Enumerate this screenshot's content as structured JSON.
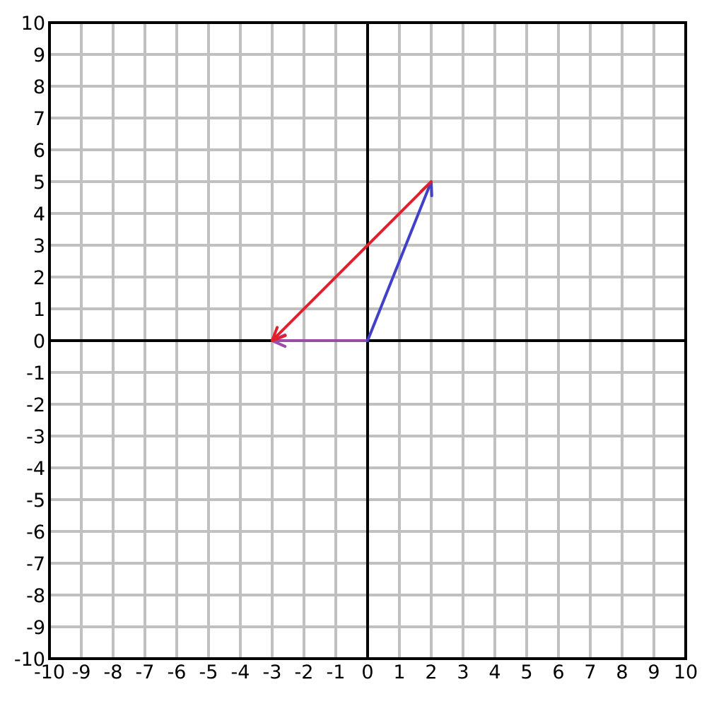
{
  "chart_data": {
    "type": "vector-plot",
    "title": "",
    "xlabel": "",
    "ylabel": "",
    "xlim": [
      -10,
      10
    ],
    "ylim": [
      -10,
      10
    ],
    "grid": true,
    "grid_step": 1,
    "x_ticks": [
      "-10",
      "-9",
      "-8",
      "-7",
      "-6",
      "-5",
      "-4",
      "-3",
      "-2",
      "-1",
      "0",
      "1",
      "2",
      "3",
      "4",
      "5",
      "6",
      "7",
      "8",
      "9",
      "10"
    ],
    "y_ticks": [
      "-10",
      "-9",
      "-8",
      "-7",
      "-6",
      "-5",
      "-4",
      "-3",
      "-2",
      "-1",
      "0",
      "1",
      "2",
      "3",
      "4",
      "5",
      "6",
      "7",
      "8",
      "9",
      "10"
    ],
    "x_tick_values": [
      -10,
      -9,
      -8,
      -7,
      -6,
      -5,
      -4,
      -3,
      -2,
      -1,
      0,
      1,
      2,
      3,
      4,
      5,
      6,
      7,
      8,
      9,
      10
    ],
    "y_tick_values": [
      -10,
      -9,
      -8,
      -7,
      -6,
      -5,
      -4,
      -3,
      -2,
      -1,
      0,
      1,
      2,
      3,
      4,
      5,
      6,
      7,
      8,
      9,
      10
    ],
    "vectors": [
      {
        "id": "blue",
        "from": [
          0,
          0
        ],
        "to": [
          2,
          5
        ],
        "color": "#4040c8"
      },
      {
        "id": "red",
        "from": [
          2,
          5
        ],
        "to": [
          -3,
          0
        ],
        "color": "#e0202c"
      },
      {
        "id": "purple",
        "from": [
          0,
          0
        ],
        "to": [
          -3,
          0
        ],
        "color": "#9b4ca8"
      }
    ],
    "colors": {
      "grid": "#c0c0c0",
      "axis": "#000000",
      "frame": "#000000"
    }
  }
}
